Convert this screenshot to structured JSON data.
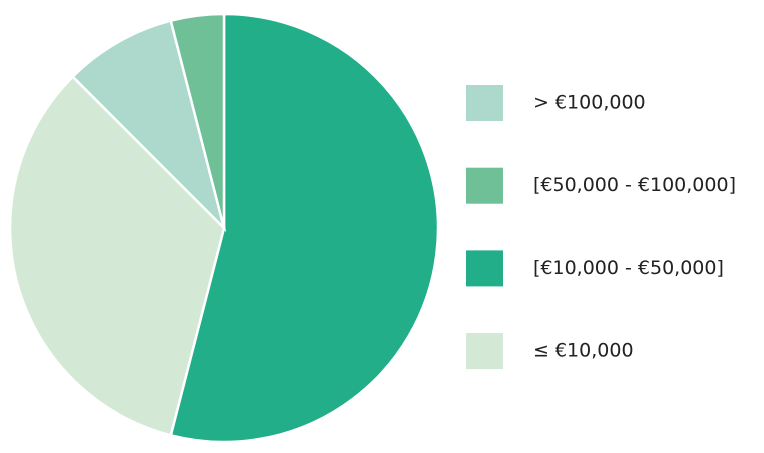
{
  "chart_data": {
    "type": "pie",
    "categories": [
      "[€10,000 - €50,000]",
      "≤ €10,000",
      "> €100,000",
      "[€50,000 - €100,000]"
    ],
    "values": [
      54,
      33.5,
      8.5,
      4
    ],
    "colors": [
      "#22ae88",
      "#d3e8d5",
      "#acd9cc",
      "#6fbf97"
    ]
  }
}
